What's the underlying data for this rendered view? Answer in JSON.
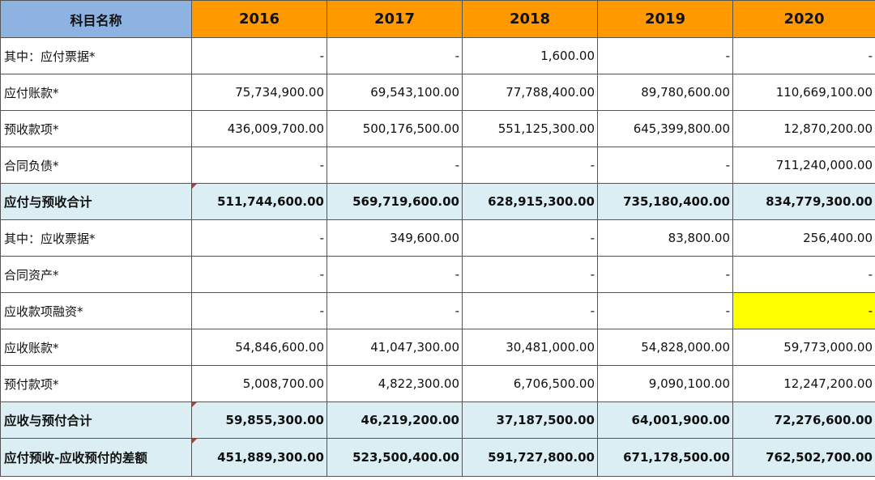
{
  "header": {
    "name": "科目名称",
    "years": [
      "2016",
      "2017",
      "2018",
      "2019",
      "2020"
    ]
  },
  "rows": [
    {
      "label": "其中：应付票据*",
      "values": [
        "-",
        "-",
        "1,600.00",
        "-",
        "-"
      ]
    },
    {
      "label": "应付账款*",
      "values": [
        "75,734,900.00",
        "69,543,100.00",
        "77,788,400.00",
        "89,780,600.00",
        "110,669,100.00"
      ]
    },
    {
      "label": "预收款项*",
      "values": [
        "436,009,700.00",
        "500,176,500.00",
        "551,125,300.00",
        "645,399,800.00",
        "12,870,200.00"
      ]
    },
    {
      "label": "合同负债*",
      "values": [
        "-",
        "-",
        "-",
        "-",
        "711,240,000.00"
      ]
    },
    {
      "label": "应付与预收合计",
      "values": [
        "511,744,600.00",
        "569,719,600.00",
        "628,915,300.00",
        "735,180,400.00",
        "834,779,300.00"
      ]
    },
    {
      "label": "其中：应收票据*",
      "values": [
        "-",
        "349,600.00",
        "-",
        "83,800.00",
        "256,400.00"
      ]
    },
    {
      "label": "合同资产*",
      "values": [
        "-",
        "-",
        "-",
        "-",
        "-"
      ]
    },
    {
      "label": "应收款项融资*",
      "values": [
        "-",
        "-",
        "-",
        "-",
        "-"
      ]
    },
    {
      "label": "应收账款*",
      "values": [
        "54,846,600.00",
        "41,047,300.00",
        "30,481,000.00",
        "54,828,000.00",
        "59,773,000.00"
      ]
    },
    {
      "label": "预付款项*",
      "values": [
        "5,008,700.00",
        "4,822,300.00",
        "6,706,500.00",
        "9,090,100.00",
        "12,247,200.00"
      ]
    },
    {
      "label": "应收与预付合计",
      "values": [
        "59,855,300.00",
        "46,219,200.00",
        "37,187,500.00",
        "64,001,900.00",
        "72,276,600.00"
      ]
    },
    {
      "label": "应付预收-应收预付的差额",
      "values": [
        "451,889,300.00",
        "523,500,400.00",
        "591,727,800.00",
        "671,178,500.00",
        "762,502,700.00"
      ]
    }
  ],
  "colors": {
    "name_header_bg": "#8db3e2",
    "year_header_bg": "#ff9900",
    "total_row_bg": "#daeef3",
    "highlight_cell_bg": "#ffff00",
    "comment_marker": "#c0392b"
  }
}
